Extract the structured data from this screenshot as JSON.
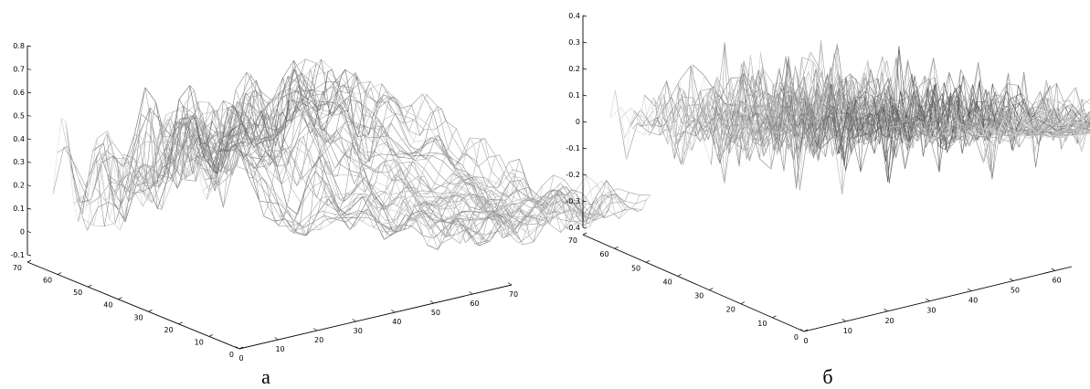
{
  "chart_data": [
    {
      "type": "surface",
      "caption": "а",
      "title": "",
      "xlabel": "",
      "ylabel": "",
      "zlabel": "",
      "x_ticks": [
        "0",
        "10",
        "20",
        "30",
        "40",
        "50",
        "60",
        "70"
      ],
      "y_ticks": [
        "0",
        "10",
        "20",
        "30",
        "40",
        "50",
        "60",
        "70"
      ],
      "z_ticks": [
        "-0.1",
        "0",
        "0.1",
        "0.2",
        "0.3",
        "0.4",
        "0.5",
        "0.6",
        "0.7",
        "0.8"
      ],
      "xlim": [
        0,
        70
      ],
      "ylim": [
        0,
        70
      ],
      "zlim": [
        -0.1,
        0.8
      ],
      "grid_size": 64,
      "render": "wireframe mesh, grayscale",
      "description_values": "rough terrain surface; heights roughly 0.0–0.8, highest ridge near the back left (~0.75), flattening toward ~0.2 at the right corner"
    },
    {
      "type": "surface",
      "caption": "б",
      "title": "",
      "xlabel": "",
      "ylabel": "",
      "zlabel": "",
      "x_ticks": [
        "0",
        "10",
        "20",
        "30",
        "40",
        "50",
        "60"
      ],
      "y_ticks": [
        "0",
        "10",
        "20",
        "30",
        "40",
        "50",
        "60",
        "70"
      ],
      "z_ticks": [
        "-0.4",
        "-0.3",
        "-0.2",
        "-0.1",
        "0",
        "0.1",
        "0.2",
        "0.3",
        "0.4"
      ],
      "xlim": [
        0,
        64
      ],
      "ylim": [
        0,
        70
      ],
      "zlim": [
        -0.4,
        0.4
      ],
      "grid_size": 64,
      "render": "wireframe mesh, grayscale",
      "description_values": "high-frequency detail surface oscillating around 0 with spikes between about -0.35 and 0.3, dying out toward the right corner"
    }
  ]
}
